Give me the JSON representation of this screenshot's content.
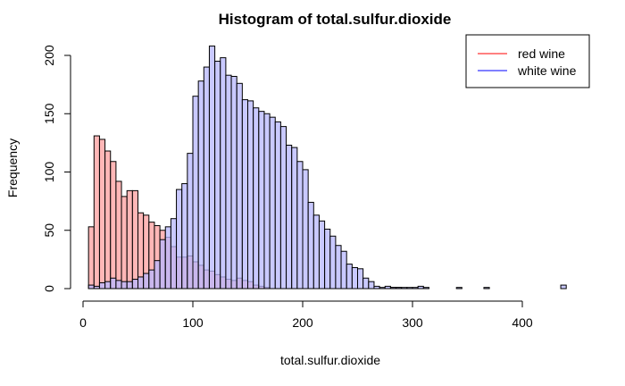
{
  "chart_data": {
    "type": "bar",
    "title": "Histogram of total.sulfur.dioxide",
    "xlabel": "total.sulfur.dioxide",
    "ylabel": "Frequency",
    "bin_width": 5,
    "xlim": [
      0,
      440
    ],
    "ylim": [
      0,
      210
    ],
    "x_ticks": [
      0,
      100,
      200,
      300,
      400
    ],
    "y_ticks": [
      0,
      50,
      100,
      150,
      200
    ],
    "legend_position": "top-right",
    "series": [
      {
        "name": "red wine",
        "color": "#ff0000",
        "fill": "#ffaaaa",
        "bins": [
          [
            5,
            53
          ],
          [
            10,
            131
          ],
          [
            15,
            128
          ],
          [
            20,
            118
          ],
          [
            25,
            109
          ],
          [
            30,
            92
          ],
          [
            35,
            79
          ],
          [
            40,
            84
          ],
          [
            45,
            84
          ],
          [
            50,
            65
          ],
          [
            55,
            63
          ],
          [
            60,
            57
          ],
          [
            65,
            54
          ],
          [
            70,
            50
          ],
          [
            75,
            44
          ],
          [
            80,
            36
          ],
          [
            85,
            27
          ],
          [
            90,
            27
          ],
          [
            95,
            28
          ],
          [
            100,
            23
          ],
          [
            105,
            20
          ],
          [
            110,
            16
          ],
          [
            115,
            15
          ],
          [
            120,
            12
          ],
          [
            125,
            10
          ],
          [
            130,
            8
          ],
          [
            135,
            7
          ],
          [
            140,
            9
          ],
          [
            145,
            7
          ],
          [
            150,
            6
          ],
          [
            155,
            3
          ],
          [
            160,
            2
          ],
          [
            165,
            1
          ],
          [
            280,
            1
          ],
          [
            285,
            1
          ]
        ]
      },
      {
        "name": "white wine",
        "color": "#0000ff",
        "fill": "#b7b7ff",
        "bins": [
          [
            5,
            3
          ],
          [
            10,
            2
          ],
          [
            15,
            5
          ],
          [
            20,
            6
          ],
          [
            25,
            9
          ],
          [
            30,
            7
          ],
          [
            35,
            6
          ],
          [
            40,
            6
          ],
          [
            45,
            8
          ],
          [
            50,
            10
          ],
          [
            55,
            13
          ],
          [
            60,
            16
          ],
          [
            65,
            24
          ],
          [
            70,
            42
          ],
          [
            75,
            53
          ],
          [
            80,
            60
          ],
          [
            85,
            85
          ],
          [
            90,
            90
          ],
          [
            95,
            116
          ],
          [
            100,
            165
          ],
          [
            105,
            178
          ],
          [
            110,
            190
          ],
          [
            115,
            208
          ],
          [
            120,
            195
          ],
          [
            125,
            198
          ],
          [
            130,
            183
          ],
          [
            135,
            182
          ],
          [
            140,
            176
          ],
          [
            145,
            162
          ],
          [
            150,
            161
          ],
          [
            155,
            155
          ],
          [
            160,
            152
          ],
          [
            165,
            150
          ],
          [
            170,
            147
          ],
          [
            175,
            143
          ],
          [
            180,
            139
          ],
          [
            185,
            123
          ],
          [
            190,
            121
          ],
          [
            195,
            109
          ],
          [
            200,
            102
          ],
          [
            205,
            74
          ],
          [
            210,
            63
          ],
          [
            215,
            58
          ],
          [
            220,
            51
          ],
          [
            225,
            45
          ],
          [
            230,
            37
          ],
          [
            235,
            32
          ],
          [
            240,
            21
          ],
          [
            245,
            18
          ],
          [
            250,
            17
          ],
          [
            255,
            9
          ],
          [
            260,
            6
          ],
          [
            265,
            2
          ],
          [
            270,
            1
          ],
          [
            275,
            2
          ],
          [
            280,
            1
          ],
          [
            285,
            1
          ],
          [
            290,
            1
          ],
          [
            295,
            1
          ],
          [
            300,
            1
          ],
          [
            305,
            2
          ],
          [
            310,
            1
          ],
          [
            340,
            1
          ],
          [
            365,
            1
          ],
          [
            435,
            3
          ]
        ]
      }
    ]
  },
  "legend": {
    "items": [
      {
        "label": "red wine",
        "color": "#ff0000"
      },
      {
        "label": "white wine",
        "color": "#0000ff"
      }
    ]
  }
}
